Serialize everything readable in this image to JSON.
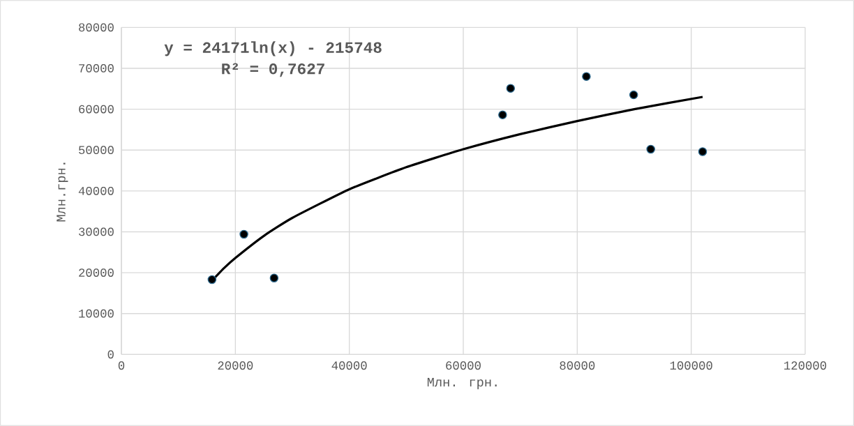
{
  "chart_data": {
    "type": "scatter",
    "xlabel": "Млн. грн.",
    "ylabel": "Млн.грн.",
    "series": [
      {
        "color": "#000000",
        "x": [
          15900,
          21500,
          26800,
          66900,
          68300,
          81600,
          89900,
          92900,
          102000
        ],
        "values": [
          18300,
          29400,
          18700,
          58600,
          65100,
          68000,
          63500,
          50200,
          49600
        ]
      },
      {
        "type": "line",
        "color": "#000000",
        "marker": "none",
        "x": [
          16000,
          18000,
          20000,
          25000,
          30000,
          40000,
          50000,
          60000,
          70000,
          80000,
          90000,
          102000
        ],
        "values": [
          18200,
          21100,
          23600,
          29000,
          33400,
          40400,
          45800,
          50200,
          53900,
          57100,
          60000,
          63000
        ]
      }
    ],
    "annotations": [
      "**y = 24171ln(x) - 215748**",
      "**R² = 0,7627**"
    ],
    "xlim": [
      0,
      120000
    ],
    "ylim": [
      0,
      80000
    ],
    "xticks": [
      0,
      20000,
      40000,
      60000,
      80000,
      100000,
      120000
    ],
    "yticks": [
      0,
      10000,
      20000,
      30000,
      40000,
      50000,
      60000,
      70000,
      80000
    ],
    "grid": true,
    "marker": "circle"
  }
}
